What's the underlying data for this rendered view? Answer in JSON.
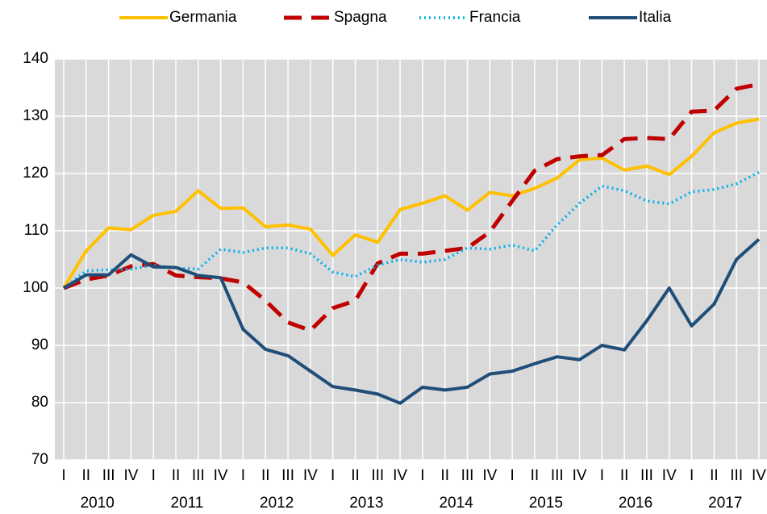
{
  "chart_data": {
    "type": "line",
    "categories": [
      "I",
      "II",
      "III",
      "IV",
      "I",
      "II",
      "III",
      "IV",
      "I",
      "II",
      "III",
      "IV",
      "I",
      "II",
      "III",
      "IV",
      "I",
      "II",
      "III",
      "IV",
      "I",
      "II",
      "III",
      "IV",
      "I",
      "II",
      "III",
      "IV",
      "I",
      "II",
      "III",
      "IV"
    ],
    "years": [
      "2010",
      "2011",
      "2012",
      "2013",
      "2014",
      "2015",
      "2016",
      "2017"
    ],
    "series": [
      {
        "name": "Germania",
        "color": "#ffc000",
        "style": "solid",
        "values": [
          100,
          106.5,
          110.5,
          110.2,
          112.7,
          113.4,
          117,
          113.9,
          114,
          110.7,
          111,
          110.3,
          105.7,
          109.3,
          108,
          113.7,
          114.8,
          116.1,
          113.6,
          116.7,
          116.1,
          117.4,
          119.2,
          122.4,
          122.7,
          120.6,
          121.3,
          119.8,
          123,
          127.1,
          128.8,
          129.5
        ]
      },
      {
        "name": "Spagna",
        "color": "#c00000",
        "style": "dashed",
        "values": [
          100,
          101.5,
          102.2,
          103.8,
          104.2,
          102.2,
          101.9,
          101.7,
          101,
          97.8,
          94,
          92.6,
          96.5,
          97.8,
          104.3,
          106,
          106,
          106.5,
          107,
          109.8,
          115.2,
          120.5,
          122.5,
          123,
          123.2,
          126,
          126.2,
          126,
          130.8,
          131,
          134.8,
          135.6
        ]
      },
      {
        "name": "Francia",
        "color": "#00b0f0",
        "style": "dotted",
        "values": [
          100,
          103,
          103.2,
          103.3,
          104,
          103.5,
          103.3,
          106.8,
          106.2,
          107,
          107,
          106,
          102.8,
          102,
          104,
          105,
          104.5,
          105,
          107,
          106.8,
          107.5,
          106.5,
          111,
          114.8,
          117.8,
          117,
          115.2,
          114.7,
          116.8,
          117.2,
          118.2,
          120.2
        ]
      },
      {
        "name": "Italia",
        "color": "#1f4e79",
        "style": "solid",
        "values": [
          100,
          102.3,
          102.3,
          105.8,
          103.7,
          103.6,
          102.2,
          101.8,
          92.8,
          89.3,
          88.2,
          85.5,
          82.8,
          82.2,
          81.5,
          79.9,
          82.7,
          82.2,
          82.7,
          85,
          85.5,
          86.8,
          88,
          87.5,
          90,
          89.2,
          94.3,
          100,
          93.4,
          97.2,
          105,
          108.5
        ]
      }
    ],
    "ylim": [
      70,
      140
    ],
    "yticks": [
      70,
      80,
      90,
      100,
      110,
      120,
      130,
      140
    ],
    "grid": true
  }
}
